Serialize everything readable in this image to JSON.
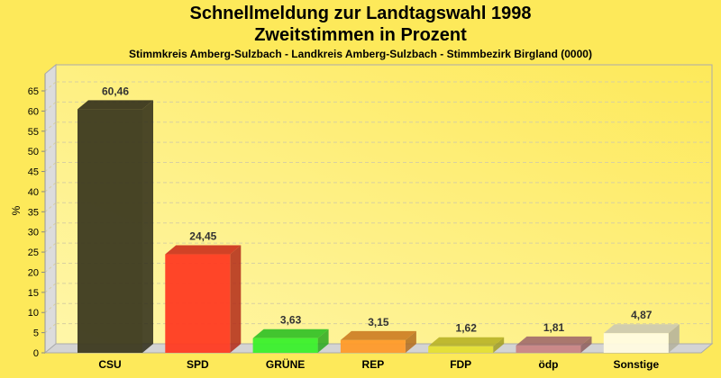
{
  "chart_data": {
    "type": "bar",
    "title": "Schnellmeldung zur Landtagswahl 1998",
    "subtitle": "Zweitstimmen in Prozent",
    "subsubtitle": "Stimmkreis Amberg-Sulzbach - Landkreis Amberg-Sulzbach - Stimmbezirk Birgland (0000)",
    "xlabel": "",
    "ylabel": "%",
    "ylim": [
      0,
      65
    ],
    "yticks": [
      0,
      5,
      10,
      15,
      20,
      25,
      30,
      35,
      40,
      45,
      50,
      55,
      60,
      65
    ],
    "grid": true,
    "categories": [
      "CSU",
      "SPD",
      "GRÜNE",
      "REP",
      "FDP",
      "ödp",
      "Sonstige"
    ],
    "values": [
      60.46,
      24.45,
      3.63,
      3.15,
      1.62,
      1.81,
      4.87
    ],
    "value_labels": [
      "60,46",
      "24,45",
      "3,63",
      "3,15",
      "1,62",
      "1,81",
      "4,87"
    ],
    "colors": [
      "#3d3a20",
      "#ff3b22",
      "#3af02c",
      "#ff9a2a",
      "#e6e030",
      "#c98585",
      "#fffbe0"
    ]
  }
}
